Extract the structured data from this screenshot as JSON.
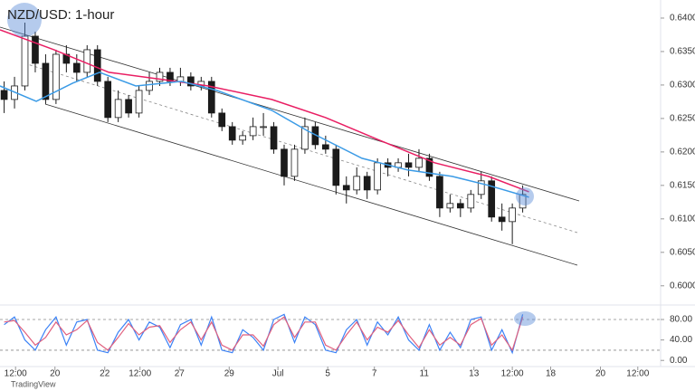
{
  "chart_data": [
    {
      "type": "candlestick",
      "title": "NZD/USD: 1-hour",
      "brand": "TradingView",
      "up_color": "#ffffff",
      "down_color": "#1b1b1b",
      "edge_color": "#1b1b1b",
      "x": [
        4,
        14,
        24,
        34,
        44,
        54,
        64,
        74,
        84,
        94,
        104,
        114,
        124,
        134,
        144,
        154,
        164,
        174,
        184,
        194,
        204,
        214,
        224,
        234,
        244,
        254,
        264,
        274,
        284,
        294,
        304,
        314,
        324,
        334,
        344,
        354,
        364,
        374,
        384,
        394,
        404,
        414,
        424,
        434,
        444,
        454,
        464,
        474,
        484,
        494,
        504
      ],
      "open": [
        0.62919,
        0.62784,
        0.62986,
        0.6373,
        0.63324,
        0.62784,
        0.63459,
        0.63324,
        0.63189,
        0.63527,
        0.63054,
        0.62514,
        0.62784,
        0.62581,
        0.62919,
        0.63054,
        0.63189,
        0.63054,
        0.63122,
        0.62986,
        0.63054,
        0.62581,
        0.62378,
        0.62176,
        0.62243,
        0.62378,
        0.62378,
        0.62041,
        0.61635,
        0.62041,
        0.62378,
        0.62108,
        0.62041,
        0.615,
        0.61432,
        0.61635,
        0.61432,
        0.61838,
        0.6177,
        0.61838,
        0.6177,
        0.61905,
        0.61635,
        0.61162,
        0.6123,
        0.61162,
        0.61365,
        0.61568,
        0.61027,
        0.60959,
        0.61162
      ],
      "high": [
        0.63054,
        0.63122,
        0.63932,
        0.63797,
        0.63459,
        0.63527,
        0.63595,
        0.63459,
        0.63595,
        0.63595,
        0.63122,
        0.62919,
        0.62851,
        0.62986,
        0.63189,
        0.63257,
        0.63257,
        0.63257,
        0.63189,
        0.63122,
        0.63122,
        0.62649,
        0.62446,
        0.62311,
        0.62514,
        0.62581,
        0.62446,
        0.62108,
        0.62108,
        0.62514,
        0.62446,
        0.62243,
        0.62108,
        0.61635,
        0.6177,
        0.61703,
        0.61905,
        0.61905,
        0.61905,
        0.61973,
        0.62041,
        0.61973,
        0.61703,
        0.61365,
        0.61297,
        0.61432,
        0.61703,
        0.61635,
        0.6123,
        0.6123,
        0.615
      ],
      "low": [
        0.62581,
        0.62649,
        0.62919,
        0.63189,
        0.62716,
        0.62716,
        0.63189,
        0.63054,
        0.63122,
        0.62986,
        0.62446,
        0.62446,
        0.62514,
        0.62514,
        0.62851,
        0.62986,
        0.62986,
        0.62986,
        0.62919,
        0.62919,
        0.62514,
        0.62311,
        0.62108,
        0.62108,
        0.62176,
        0.62243,
        0.61973,
        0.615,
        0.61568,
        0.61973,
        0.62041,
        0.61973,
        0.61365,
        0.6123,
        0.61365,
        0.61297,
        0.61365,
        0.61635,
        0.61703,
        0.61635,
        0.61703,
        0.61568,
        0.61027,
        0.61095,
        0.61027,
        0.61095,
        0.61297,
        0.60959,
        0.60824,
        0.60622,
        0.61095
      ],
      "close": [
        0.62784,
        0.62986,
        0.6373,
        0.63324,
        0.62784,
        0.63459,
        0.63324,
        0.63189,
        0.63527,
        0.63054,
        0.62514,
        0.62784,
        0.62581,
        0.62919,
        0.63054,
        0.63189,
        0.63054,
        0.63122,
        0.62986,
        0.63054,
        0.62581,
        0.62378,
        0.62176,
        0.62243,
        0.62378,
        0.62378,
        0.62041,
        0.61635,
        0.62041,
        0.62378,
        0.62108,
        0.62041,
        0.615,
        0.61432,
        0.61635,
        0.61432,
        0.61838,
        0.6177,
        0.61838,
        0.6177,
        0.61905,
        0.61635,
        0.61162,
        0.6123,
        0.61162,
        0.61365,
        0.61568,
        0.61027,
        0.60959,
        0.61162,
        0.61365
      ],
      "series": [
        {
          "color": "#e91e63",
          "x": [
            0,
            52,
            105,
            157,
            201,
            262,
            314,
            366,
            419,
            471,
            510
          ],
          "values": [
            0.63824,
            0.63527,
            0.63189,
            0.63081,
            0.62986,
            0.62784,
            0.62514,
            0.62176,
            0.61838,
            0.61635,
            0.61405
          ]
        },
        {
          "color": "#3b9be6",
          "x": [
            0,
            35,
            70,
            96,
            131,
            175,
            209,
            262,
            297,
            349,
            393,
            436,
            471,
            510
          ],
          "values": [
            0.62986,
            0.62757,
            0.63027,
            0.63189,
            0.62986,
            0.63054,
            0.62919,
            0.62622,
            0.62311,
            0.61905,
            0.6173,
            0.61635,
            0.615,
            0.61324
          ]
        }
      ],
      "xlim": [
        0,
        637
      ],
      "ylim": [
        0.5974,
        0.6427
      ],
      "xticks": [
        {
          "value": 15,
          "label": "12:00"
        },
        {
          "value": 53,
          "label": "20"
        },
        {
          "value": 101,
          "label": "22"
        },
        {
          "value": 135,
          "label": "12:00"
        },
        {
          "value": 173,
          "label": "27"
        },
        {
          "value": 221,
          "label": "29"
        },
        {
          "value": 268,
          "label": "Jul"
        },
        {
          "value": 316,
          "label": "5"
        },
        {
          "value": 361,
          "label": "7"
        },
        {
          "value": 409,
          "label": "11"
        },
        {
          "value": 457,
          "label": "13"
        },
        {
          "value": 494,
          "label": "12:00"
        },
        {
          "value": 531,
          "label": "18"
        },
        {
          "value": 579,
          "label": "20"
        },
        {
          "value": 615,
          "label": "12:00"
        }
      ],
      "yticks": [
        {
          "value": 0.64,
          "label": "0.64000"
        },
        {
          "value": 0.635,
          "label": "0.63500"
        },
        {
          "value": 0.63,
          "label": "0.63000"
        },
        {
          "value": 0.625,
          "label": "0.62500"
        },
        {
          "value": 0.62,
          "label": "0.62000"
        },
        {
          "value": 0.615,
          "label": "0.61500"
        },
        {
          "value": 0.61,
          "label": "0.61000"
        },
        {
          "value": 0.605,
          "label": "0.60500"
        },
        {
          "value": 0.6,
          "label": "0.60000"
        }
      ]
    },
    {
      "type": "line",
      "x": [
        4,
        14,
        24,
        34,
        44,
        54,
        64,
        74,
        84,
        94,
        104,
        114,
        124,
        134,
        144,
        154,
        164,
        174,
        184,
        194,
        204,
        214,
        224,
        234,
        244,
        254,
        264,
        274,
        284,
        294,
        304,
        314,
        324,
        334,
        344,
        354,
        364,
        374,
        384,
        394,
        404,
        414,
        424,
        434,
        444,
        454,
        464,
        474,
        484,
        494,
        504
      ],
      "series": [
        {
          "color": "#3b82f6",
          "values": [
            70,
            85,
            40,
            20,
            60,
            85,
            30,
            75,
            80,
            20,
            15,
            55,
            80,
            40,
            75,
            65,
            25,
            70,
            80,
            30,
            85,
            20,
            15,
            60,
            45,
            20,
            80,
            90,
            35,
            85,
            70,
            20,
            15,
            60,
            80,
            30,
            75,
            50,
            85,
            40,
            20,
            70,
            20,
            55,
            25,
            80,
            85,
            20,
            60,
            15,
            90
          ]
        },
        {
          "color": "#e0607e",
          "values": [
            75,
            78,
            55,
            30,
            45,
            75,
            50,
            60,
            78,
            35,
            20,
            45,
            72,
            50,
            65,
            68,
            35,
            60,
            75,
            40,
            75,
            30,
            20,
            50,
            50,
            28,
            70,
            85,
            45,
            75,
            75,
            30,
            20,
            50,
            75,
            40,
            65,
            55,
            78,
            50,
            25,
            60,
            30,
            45,
            30,
            70,
            82,
            30,
            50,
            20,
            85
          ]
        }
      ],
      "levels": [
        80,
        20
      ],
      "xlim": [
        0,
        637
      ],
      "ylim": [
        -12,
        103
      ],
      "yticks": [
        {
          "value": 80,
          "label": "80.00"
        },
        {
          "value": 40,
          "label": "40.00"
        },
        {
          "value": 0,
          "label": "0.00"
        }
      ]
    }
  ]
}
